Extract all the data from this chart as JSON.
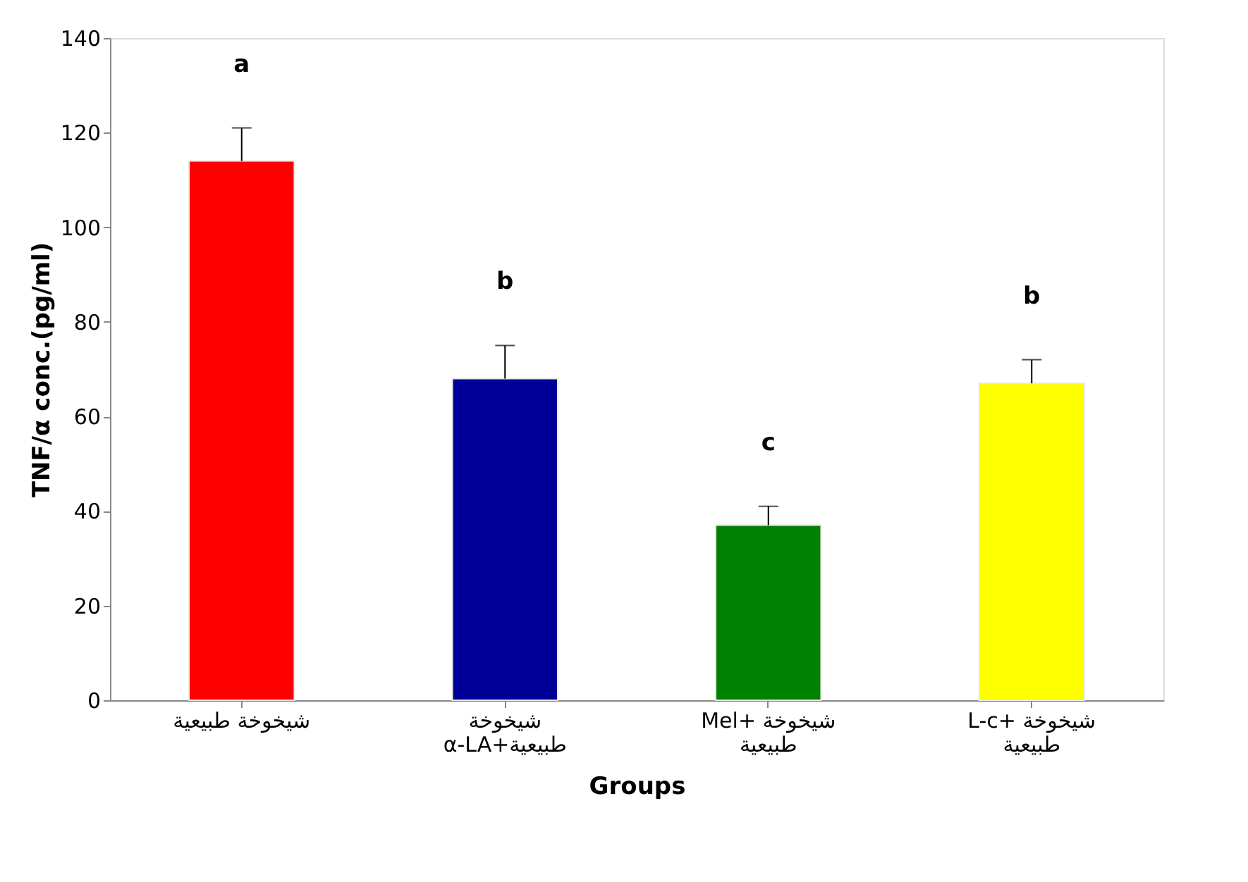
{
  "chart_data": {
    "type": "bar",
    "xlabel": "Groups",
    "ylabel": "TNF/α conc.(pg/ml)",
    "categories": [
      "شيخوخة طبيعية",
      "شيخوخة\nα-LA+طبيعية",
      "Mel+ شيخوخة\nطبيعية",
      "L-c+ شيخوخة\nطبيعية"
    ],
    "values": [
      114,
      68,
      37,
      67
    ],
    "errors": [
      7,
      7,
      4,
      5
    ],
    "colors": [
      "#ff0000",
      "#000099",
      "#008000",
      "#ffff00"
    ],
    "ylim": [
      0,
      140
    ],
    "yticks": [
      0,
      20,
      40,
      60,
      80,
      100,
      120,
      140
    ],
    "grid": false,
    "annotations": [
      "a",
      "b",
      "c",
      "b"
    ]
  }
}
